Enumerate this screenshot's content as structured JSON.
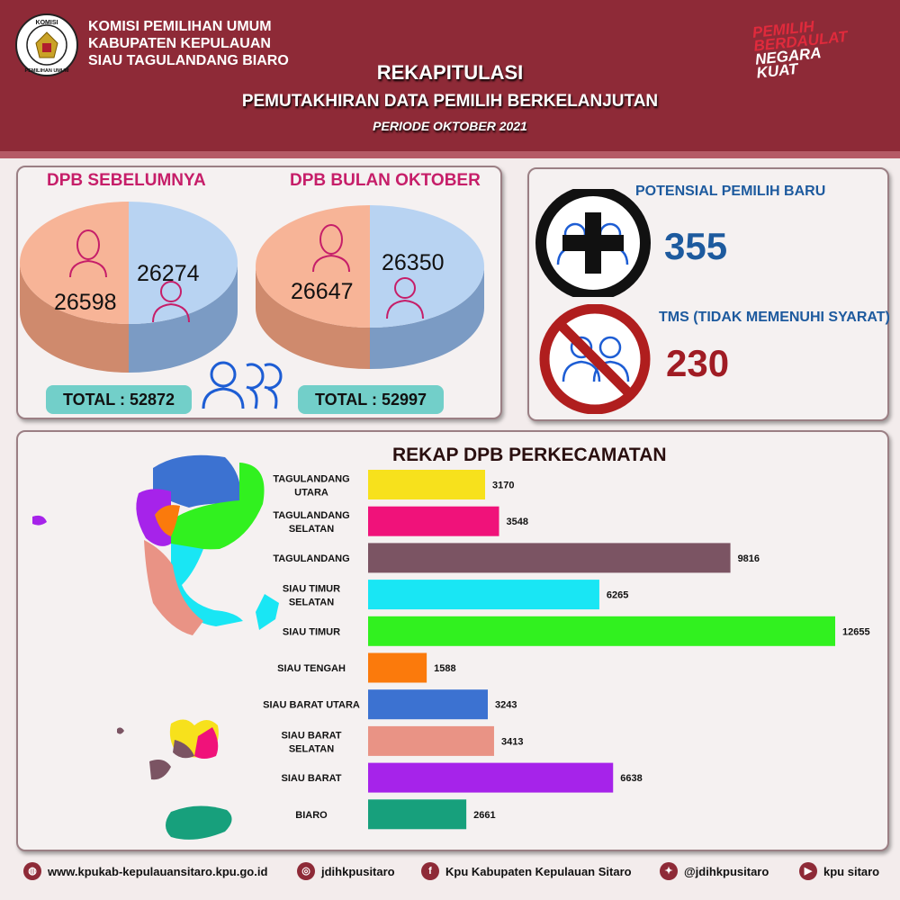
{
  "header": {
    "org_lines": [
      "KOMISI PEMILIHAN UMUM",
      "KABUPATEN KEPULAUAN",
      "SIAU TAGULANDANG BIARO"
    ],
    "logo_text_top": "KOMISI",
    "logo_text_bottom": "PEMILIHAN UMUM",
    "slogan_line1": "PEMILIH",
    "slogan_line2": "BERDAULAT",
    "slogan_line3": "NEGARA",
    "slogan_line4": "KUAT",
    "title": "REKAPITULASI",
    "subtitle": "PEMUTAKHIRAN DATA PEMILIH BERKELANJUTAN",
    "period": "PERIODE  OKTOBER 2021"
  },
  "dpb": {
    "prev_title": "DPB SEBELUMNYA",
    "curr_title": "DPB BULAN OKTOBER",
    "prev_female": "26598",
    "prev_male": "26274",
    "curr_female": "26647",
    "curr_male": "26350",
    "prev_total": "TOTAL : 52872",
    "curr_total": "TOTAL : 52997"
  },
  "stats": {
    "new_label": "POTENSIAL PEMILIH BARU",
    "new_value": "355",
    "tms_label": "TMS (TIDAK MEMENUHI SYARAT)",
    "tms_value": "230"
  },
  "chart_data": {
    "type": "bar",
    "title": "REKAP DPB PERKECAMATAN",
    "orientation": "horizontal",
    "categories": [
      [
        "TAGULANDANG",
        "UTARA"
      ],
      [
        "TAGULANDANG",
        "SELATAN"
      ],
      [
        "TAGULANDANG"
      ],
      [
        "SIAU TIMUR",
        "SELATAN"
      ],
      [
        "SIAU TIMUR"
      ],
      [
        "SIAU TENGAH"
      ],
      [
        "SIAU BARAT UTARA"
      ],
      [
        "SIAU BARAT",
        "SELATAN"
      ],
      [
        "SIAU BARAT"
      ],
      [
        "BIARO"
      ]
    ],
    "values": [
      3170,
      3548,
      9816,
      6265,
      12655,
      1588,
      3243,
      3413,
      6638,
      2661
    ],
    "colors": [
      "#f7e11c",
      "#f0127a",
      "#7b5463",
      "#19e6f4",
      "#31f11f",
      "#fb7a0c",
      "#3c72d1",
      "#e99385",
      "#a623ea",
      "#17a07c"
    ],
    "xlim": [
      0,
      12655
    ],
    "grid": false,
    "legend": "none"
  },
  "footer": {
    "website": "www.kpukab-kepulauansitaro.kpu.go.id",
    "instagram": "jdihkpusitaro",
    "facebook": "Kpu Kabupaten Kepulauan Sitaro",
    "twitter": "@jdihkpusitaro",
    "youtube": "kpu sitaro",
    "icon_names": [
      "globe-icon",
      "instagram-icon",
      "facebook-icon",
      "twitter-icon",
      "youtube-icon"
    ]
  }
}
